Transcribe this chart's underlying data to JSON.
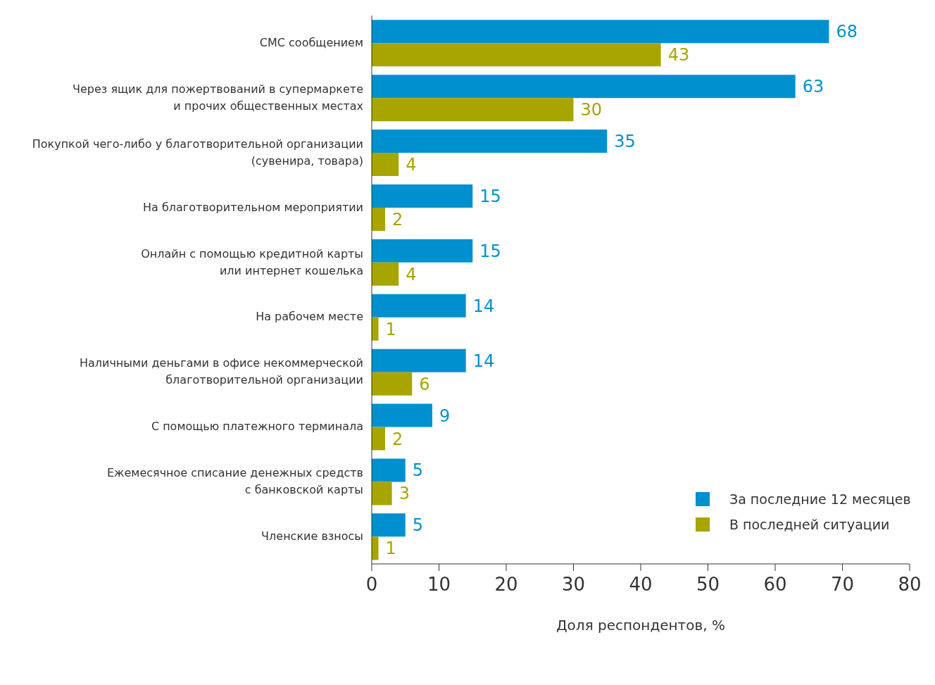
{
  "chart_data": {
    "type": "bar",
    "orientation": "horizontal",
    "xlabel": "Доля респондентов, %",
    "categories": [
      "СМС сообщением",
      "Через ящик для пожертвований в супермаркете\nи прочих общественных местах",
      "Покупкой чего-либо у благотворительной организации\n(сувенира, товара)",
      "На благотворительном мероприятии",
      "Онлайн с помощью кредитной карты\nили интернет кошелька",
      "На рабочем месте",
      "Наличными деньгами в офисе некоммерческой\nблаготворительной организации",
      "С помощью платежного терминала",
      "Ежемесячное списание денежных средств\nс банковской карты",
      "Членские взносы"
    ],
    "series": [
      {
        "name": "За последние 12 месяцев",
        "color": "#0090d0",
        "values": [
          68,
          63,
          35,
          15,
          15,
          14,
          14,
          9,
          5,
          5
        ]
      },
      {
        "name": "В последней ситуации",
        "color": "#a8a400",
        "values": [
          43,
          30,
          4,
          2,
          4,
          1,
          6,
          2,
          3,
          1
        ]
      }
    ],
    "xlim": [
      0,
      80
    ],
    "xticks": [
      0,
      10,
      20,
      30,
      40,
      50,
      60,
      70,
      80
    ],
    "data_labels": true,
    "grid": false,
    "legend": "bottom right"
  }
}
